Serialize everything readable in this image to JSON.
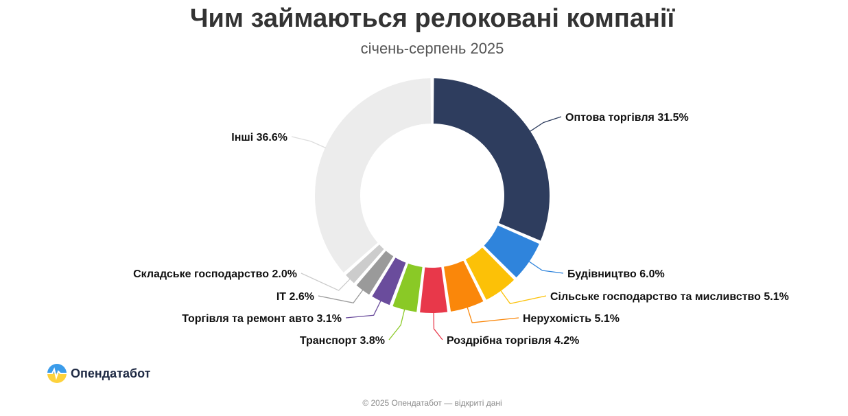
{
  "chart_data": {
    "type": "pie",
    "title": "Чим займаються релоковані компанії",
    "subtitle": "січень-серпень 2025",
    "slices": [
      {
        "label": "Оптова торгівля",
        "value": 31.5,
        "value_label": "31.5%",
        "color": "#2e3d5e"
      },
      {
        "label": "Будівництво",
        "value": 6.0,
        "value_label": "6.0%",
        "color": "#2f84dc"
      },
      {
        "label": "Сільське господарство та мисливство",
        "value": 5.1,
        "value_label": "5.1%",
        "color": "#fcc107"
      },
      {
        "label": "Нерухомість",
        "value": 5.1,
        "value_label": "5.1%",
        "color": "#fa870a"
      },
      {
        "label": "Роздрібна торгівля",
        "value": 4.2,
        "value_label": "4.2%",
        "color": "#e8384a"
      },
      {
        "label": "Транспорт",
        "value": 3.8,
        "value_label": "3.8%",
        "color": "#8ac926"
      },
      {
        "label": "Торгівля та ремонт авто",
        "value": 3.1,
        "value_label": "3.1%",
        "color": "#6a4c9c"
      },
      {
        "label": "IT",
        "value": 2.6,
        "value_label": "2.6%",
        "color": "#9a9a9a"
      },
      {
        "label": "Складське господарство",
        "value": 2.0,
        "value_label": "2.0%",
        "color": "#cccccc"
      },
      {
        "label": "Інші",
        "value": 36.6,
        "value_label": "36.6%",
        "color": "#ececec"
      }
    ],
    "donut": true,
    "legend": "none"
  },
  "branding": {
    "logo_text": "Опендатабот",
    "logo_icon": "opendatabot-logo-icon"
  },
  "footer": {
    "text": "© 2025 Опендатабот — відкриті дані"
  }
}
